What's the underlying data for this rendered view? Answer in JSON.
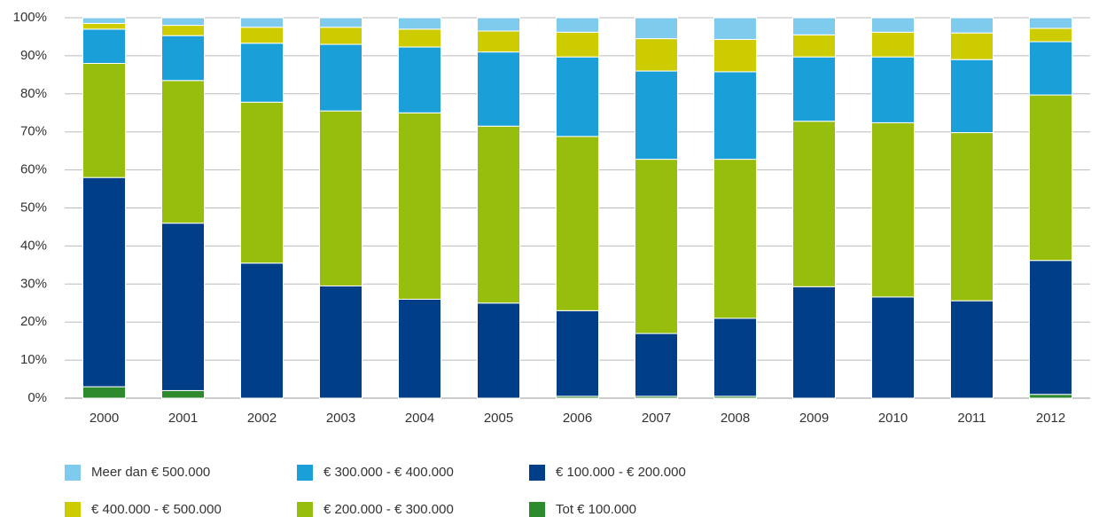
{
  "chart_data": {
    "type": "stacked_bar",
    "categories": [
      "2000",
      "2001",
      "2002",
      "2003",
      "2004",
      "2005",
      "2006",
      "2007",
      "2008",
      "2009",
      "2010",
      "2011",
      "2012"
    ],
    "series": [
      {
        "name": "Meer dan € 500.000",
        "color": "#7fcbee",
        "values": [
          1.5,
          2,
          2.5,
          2.5,
          3,
          3.5,
          3.8,
          5.5,
          5.7,
          4.5,
          3.8,
          4,
          2.8
        ]
      },
      {
        "name": "€ 400.000 - € 500.000",
        "color": "#cccc00",
        "values": [
          1.5,
          2.7,
          4.2,
          4.5,
          4.7,
          5.5,
          6.5,
          8.5,
          8.5,
          5.8,
          6.5,
          7,
          3.5
        ]
      },
      {
        "name": "€ 300.000 - € 400.000",
        "color": "#1a9fd9",
        "values": [
          9,
          11.8,
          15.5,
          17.5,
          17.3,
          19.5,
          20.9,
          23.2,
          23,
          16.9,
          17.3,
          19.2,
          14
        ]
      },
      {
        "name": "€ 200.000 - € 300.000",
        "color": "#97bd0d",
        "values": [
          30,
          37.5,
          42.3,
          46,
          49,
          46.5,
          45.8,
          45.8,
          41.8,
          43.5,
          45.8,
          44.2,
          43.5
        ]
      },
      {
        "name": "€ 100.000 - € 200.000",
        "color": "#003f87",
        "values": [
          55,
          44,
          35.5,
          29.5,
          26,
          25,
          22.5,
          16.5,
          20.5,
          29.3,
          26.6,
          25.6,
          35.2
        ]
      },
      {
        "name": "Tot € 100.000",
        "color": "#2d8a2d",
        "values": [
          3,
          2,
          0,
          0,
          0,
          0,
          0.5,
          0.5,
          0.5,
          0,
          0,
          0,
          1
        ]
      }
    ],
    "ylim": [
      0,
      100
    ],
    "yticks": [
      {
        "value": 0,
        "label": "0%"
      },
      {
        "value": 10,
        "label": "10%"
      },
      {
        "value": 20,
        "label": "20%"
      },
      {
        "value": 30,
        "label": "30%"
      },
      {
        "value": 40,
        "label": "40%"
      },
      {
        "value": 50,
        "label": "50%"
      },
      {
        "value": 60,
        "label": "60%"
      },
      {
        "value": 70,
        "label": "70%"
      },
      {
        "value": 80,
        "label": "80%"
      },
      {
        "value": 90,
        "label": "90%"
      },
      {
        "value": 100,
        "label": "100%"
      }
    ],
    "grid": true
  }
}
